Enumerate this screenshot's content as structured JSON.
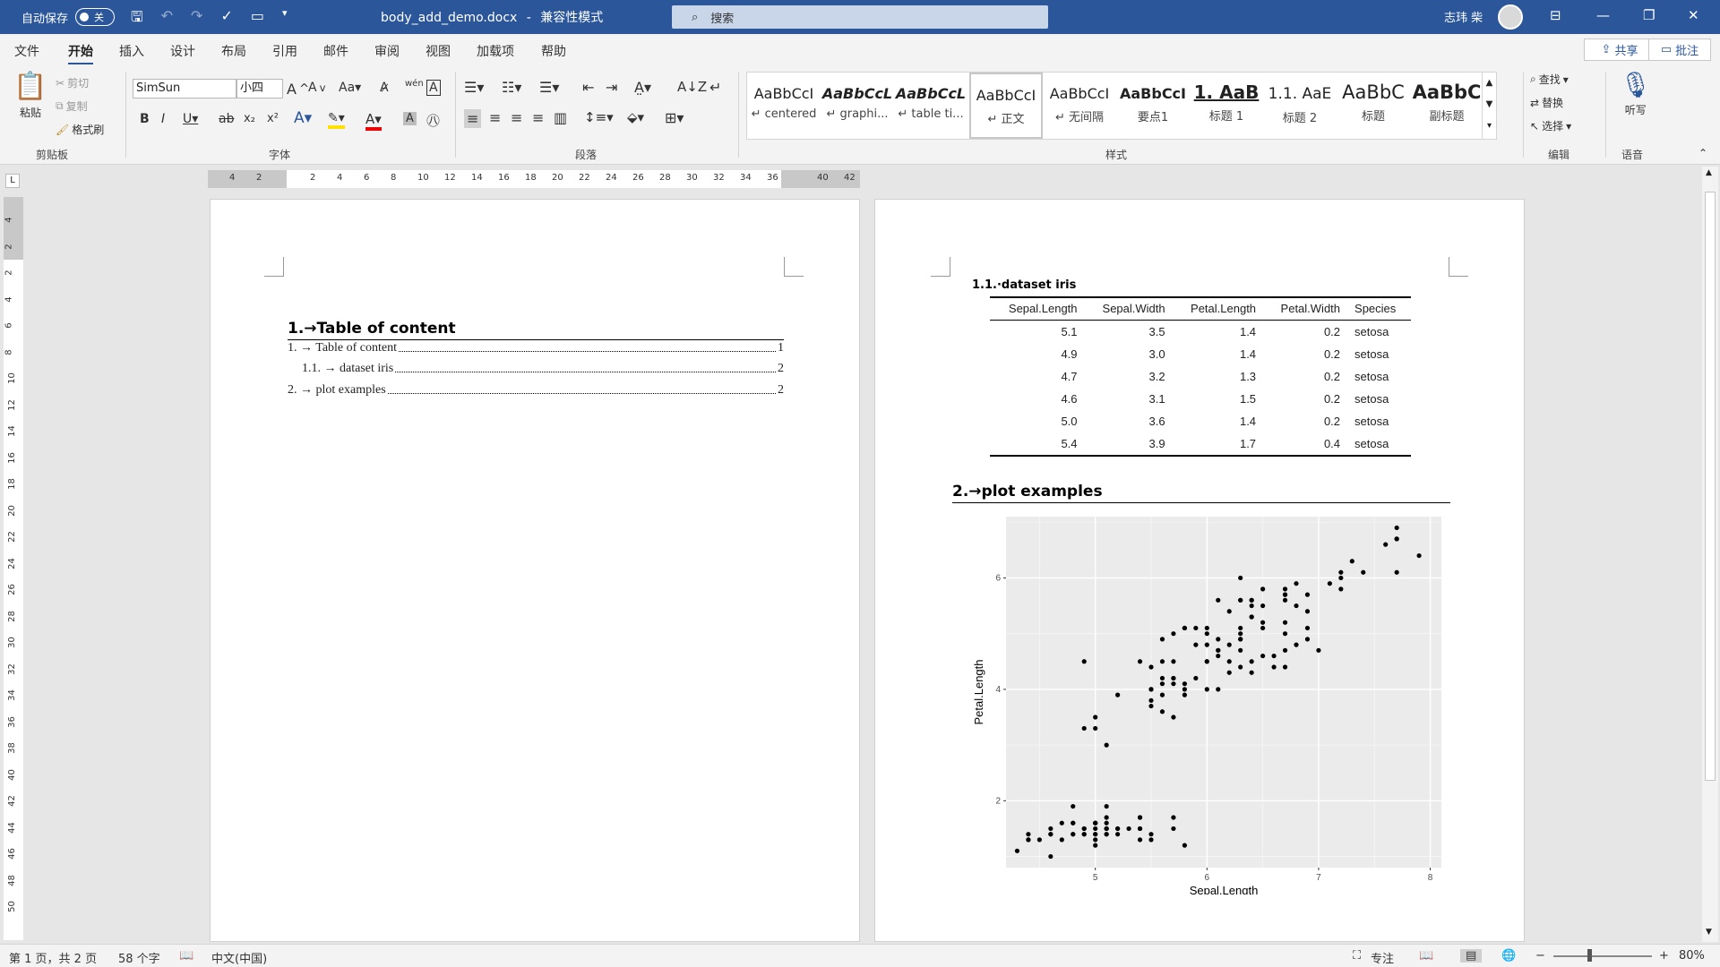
{
  "titlebar": {
    "autosave_label": "自动保存",
    "autosave_state": "关",
    "doc_title": "body_add_demo.docx",
    "mode": "兼容性模式",
    "search_placeholder": "搜索",
    "user_name": "志玮 柴",
    "window_buttons": [
      "restore-ribbon",
      "minimize",
      "restore",
      "close"
    ]
  },
  "menu": {
    "items": [
      "文件",
      "开始",
      "插入",
      "设计",
      "布局",
      "引用",
      "邮件",
      "审阅",
      "视图",
      "加载项",
      "帮助"
    ],
    "active": "开始",
    "share": "共享",
    "comment": "批注"
  },
  "ribbon": {
    "clipboard": {
      "paste": "粘贴",
      "cut": "剪切",
      "copy": "复制",
      "format_painter": "格式刷",
      "label": "剪贴板"
    },
    "font": {
      "family": "SimSun",
      "size": "小四",
      "label": "字体"
    },
    "paragraph": {
      "label": "段落"
    },
    "styles": {
      "label": "样式",
      "items": [
        {
          "sample": "AaBbCcI",
          "name": "↵ centered"
        },
        {
          "sample": "AaBbCcL",
          "name": "↵ graphi..."
        },
        {
          "sample": "AaBbCcL",
          "name": "↵ table ti..."
        },
        {
          "sample": "AaBbCcI",
          "name": "↵ 正文"
        },
        {
          "sample": "AaBbCcI",
          "name": "↵ 无间隔"
        },
        {
          "sample": "AaBbCcI",
          "name": "要点1"
        },
        {
          "sample": "1. AaB",
          "name": "标题 1"
        },
        {
          "sample": "1.1. AaE",
          "name": "标题 2"
        },
        {
          "sample": "AaBbC",
          "name": "标题"
        },
        {
          "sample": "AaBbC",
          "name": "副标题"
        }
      ]
    },
    "editing": {
      "find": "查找",
      "replace": "替换",
      "select": "选择",
      "label": "编辑"
    },
    "voice": {
      "dictate": "听写",
      "label": "语音"
    }
  },
  "ruler": {
    "h_ticks": [
      "4",
      "2",
      "2",
      "4",
      "6",
      "8",
      "10",
      "12",
      "14",
      "16",
      "18",
      "20",
      "22",
      "24",
      "26",
      "28",
      "30",
      "32",
      "34",
      "36",
      "40",
      "42"
    ],
    "v_ticks": [
      "4",
      "2",
      "2",
      "4",
      "6",
      "8",
      "10",
      "12",
      "14",
      "16",
      "18",
      "20",
      "22",
      "24",
      "26",
      "28",
      "30",
      "32",
      "34",
      "36",
      "38",
      "40",
      "42",
      "44",
      "46",
      "48",
      "50"
    ]
  },
  "page1": {
    "heading": "1.→Table of content",
    "toc": [
      {
        "text": "1. → Table of content",
        "page": "1"
      },
      {
        "text": "1.1. → dataset iris",
        "page": "2"
      },
      {
        "text": "2. → plot examples",
        "page": "2"
      }
    ]
  },
  "page2": {
    "subheading": "1.1.·dataset iris",
    "table": {
      "headers": [
        "Sepal.Length",
        "Sepal.Width",
        "Petal.Length",
        "Petal.Width",
        "Species"
      ],
      "rows": [
        [
          "5.1",
          "3.5",
          "1.4",
          "0.2",
          "setosa"
        ],
        [
          "4.9",
          "3.0",
          "1.4",
          "0.2",
          "setosa"
        ],
        [
          "4.7",
          "3.2",
          "1.3",
          "0.2",
          "setosa"
        ],
        [
          "4.6",
          "3.1",
          "1.5",
          "0.2",
          "setosa"
        ],
        [
          "5.0",
          "3.6",
          "1.4",
          "0.2",
          "setosa"
        ],
        [
          "5.4",
          "3.9",
          "1.7",
          "0.4",
          "setosa"
        ]
      ]
    },
    "heading2": "2.→plot examples"
  },
  "chart_data": {
    "type": "scatter",
    "title": "",
    "xlabel": "Sepal.Length",
    "ylabel": "Petal.Length",
    "xlim": [
      4.2,
      8.1
    ],
    "ylim": [
      0.8,
      7.1
    ],
    "x_ticks": [
      "5",
      "6",
      "7",
      "8"
    ],
    "y_ticks": [
      "2",
      "4",
      "6"
    ],
    "grid": true,
    "points": [
      [
        5.1,
        1.4
      ],
      [
        4.9,
        1.4
      ],
      [
        4.7,
        1.3
      ],
      [
        4.6,
        1.5
      ],
      [
        5.0,
        1.4
      ],
      [
        5.4,
        1.7
      ],
      [
        4.6,
        1.4
      ],
      [
        5.0,
        1.5
      ],
      [
        4.4,
        1.4
      ],
      [
        4.9,
        1.5
      ],
      [
        5.4,
        1.5
      ],
      [
        4.8,
        1.6
      ],
      [
        4.8,
        1.4
      ],
      [
        4.3,
        1.1
      ],
      [
        5.8,
        1.2
      ],
      [
        5.7,
        1.5
      ],
      [
        5.4,
        1.3
      ],
      [
        5.1,
        1.4
      ],
      [
        5.7,
        1.7
      ],
      [
        5.1,
        1.5
      ],
      [
        5.4,
        1.7
      ],
      [
        5.1,
        1.5
      ],
      [
        4.6,
        1.0
      ],
      [
        5.1,
        1.7
      ],
      [
        4.8,
        1.9
      ],
      [
        5.0,
        1.6
      ],
      [
        5.0,
        1.6
      ],
      [
        5.2,
        1.5
      ],
      [
        5.2,
        1.4
      ],
      [
        4.7,
        1.6
      ],
      [
        4.8,
        1.6
      ],
      [
        5.4,
        1.5
      ],
      [
        5.2,
        1.5
      ],
      [
        5.5,
        1.4
      ],
      [
        4.9,
        1.5
      ],
      [
        5.0,
        1.2
      ],
      [
        5.5,
        1.3
      ],
      [
        4.9,
        1.4
      ],
      [
        4.4,
        1.3
      ],
      [
        5.1,
        1.5
      ],
      [
        5.0,
        1.3
      ],
      [
        4.5,
        1.3
      ],
      [
        4.4,
        1.3
      ],
      [
        5.0,
        1.6
      ],
      [
        5.1,
        1.9
      ],
      [
        4.8,
        1.4
      ],
      [
        5.1,
        1.6
      ],
      [
        4.6,
        1.4
      ],
      [
        5.3,
        1.5
      ],
      [
        5.0,
        1.4
      ],
      [
        7.0,
        4.7
      ],
      [
        6.4,
        4.5
      ],
      [
        6.9,
        4.9
      ],
      [
        5.5,
        4.0
      ],
      [
        6.5,
        4.6
      ],
      [
        5.7,
        4.5
      ],
      [
        6.3,
        4.7
      ],
      [
        4.9,
        3.3
      ],
      [
        6.6,
        4.6
      ],
      [
        5.2,
        3.9
      ],
      [
        5.0,
        3.5
      ],
      [
        5.9,
        4.2
      ],
      [
        6.0,
        4.0
      ],
      [
        6.1,
        4.7
      ],
      [
        5.6,
        3.6
      ],
      [
        6.7,
        4.4
      ],
      [
        5.6,
        4.5
      ],
      [
        5.8,
        4.1
      ],
      [
        6.2,
        4.5
      ],
      [
        5.6,
        3.9
      ],
      [
        5.9,
        4.8
      ],
      [
        6.1,
        4.0
      ],
      [
        6.3,
        4.9
      ],
      [
        6.1,
        4.7
      ],
      [
        6.4,
        4.3
      ],
      [
        6.6,
        4.4
      ],
      [
        6.8,
        4.8
      ],
      [
        6.7,
        5.0
      ],
      [
        6.0,
        4.5
      ],
      [
        5.7,
        3.5
      ],
      [
        5.5,
        3.8
      ],
      [
        5.5,
        3.7
      ],
      [
        5.8,
        3.9
      ],
      [
        6.0,
        5.1
      ],
      [
        5.4,
        4.5
      ],
      [
        6.0,
        4.5
      ],
      [
        6.7,
        4.7
      ],
      [
        6.3,
        4.4
      ],
      [
        5.6,
        4.1
      ],
      [
        5.5,
        4.0
      ],
      [
        5.5,
        4.4
      ],
      [
        6.1,
        4.6
      ],
      [
        5.8,
        4.0
      ],
      [
        5.0,
        3.3
      ],
      [
        5.6,
        4.2
      ],
      [
        5.7,
        4.2
      ],
      [
        5.7,
        4.2
      ],
      [
        6.2,
        4.3
      ],
      [
        5.1,
        3.0
      ],
      [
        5.7,
        4.1
      ],
      [
        6.3,
        6.0
      ],
      [
        5.8,
        5.1
      ],
      [
        7.1,
        5.9
      ],
      [
        6.3,
        5.6
      ],
      [
        6.5,
        5.8
      ],
      [
        7.6,
        6.6
      ],
      [
        4.9,
        4.5
      ],
      [
        7.3,
        6.3
      ],
      [
        6.7,
        5.8
      ],
      [
        7.2,
        6.1
      ],
      [
        6.5,
        5.1
      ],
      [
        6.4,
        5.3
      ],
      [
        6.8,
        5.5
      ],
      [
        5.7,
        5.0
      ],
      [
        5.8,
        5.1
      ],
      [
        6.4,
        5.3
      ],
      [
        6.5,
        5.5
      ],
      [
        7.7,
        6.7
      ],
      [
        7.7,
        6.9
      ],
      [
        6.0,
        5.0
      ],
      [
        6.9,
        5.7
      ],
      [
        5.6,
        4.9
      ],
      [
        7.7,
        6.7
      ],
      [
        6.3,
        4.9
      ],
      [
        6.7,
        5.7
      ],
      [
        7.2,
        6.0
      ],
      [
        6.2,
        4.8
      ],
      [
        6.1,
        4.9
      ],
      [
        6.4,
        5.6
      ],
      [
        7.2,
        5.8
      ],
      [
        7.4,
        6.1
      ],
      [
        7.9,
        6.4
      ],
      [
        6.4,
        5.6
      ],
      [
        6.3,
        5.1
      ],
      [
        6.1,
        5.6
      ],
      [
        7.7,
        6.1
      ],
      [
        6.3,
        5.6
      ],
      [
        6.4,
        5.5
      ],
      [
        6.0,
        4.8
      ],
      [
        6.9,
        5.4
      ],
      [
        6.7,
        5.6
      ],
      [
        6.9,
        5.1
      ],
      [
        5.8,
        5.1
      ],
      [
        6.8,
        5.9
      ],
      [
        6.7,
        5.7
      ],
      [
        6.7,
        5.2
      ],
      [
        6.3,
        5.0
      ],
      [
        6.5,
        5.2
      ],
      [
        6.2,
        5.4
      ],
      [
        5.9,
        5.1
      ]
    ]
  },
  "status": {
    "page": "第 1 页，共 2 页",
    "words": "58 个字",
    "lang": "中文(中国)",
    "focus": "专注",
    "zoom": "80%"
  }
}
